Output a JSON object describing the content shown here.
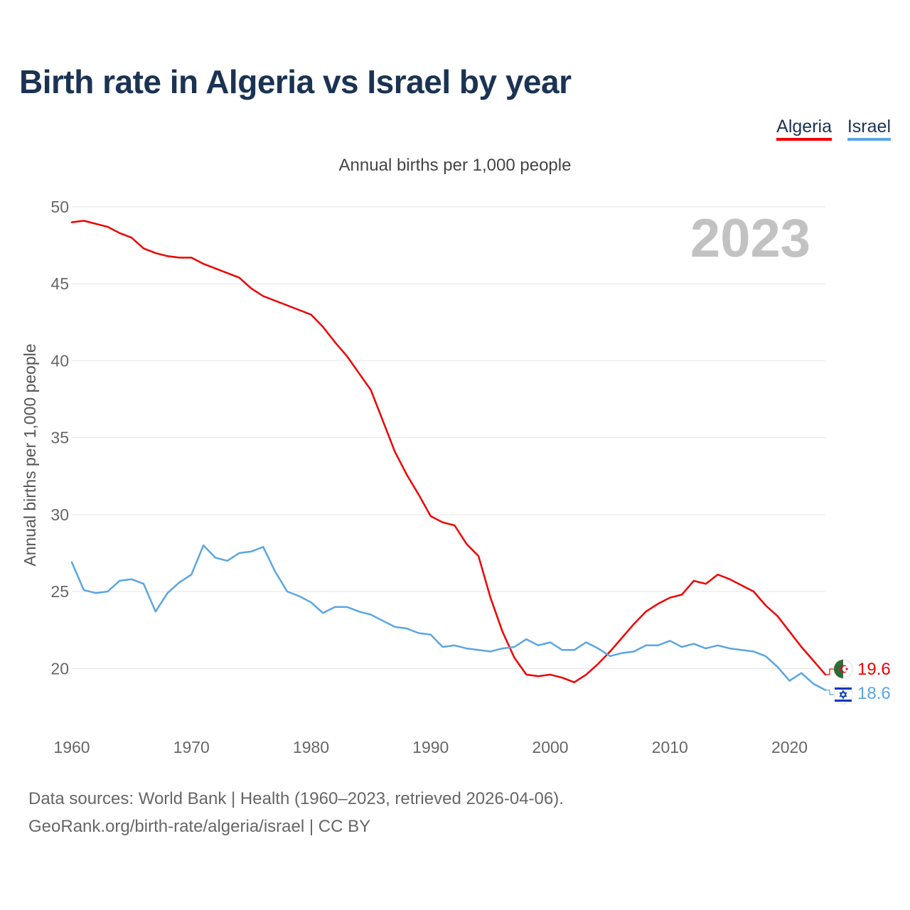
{
  "title": "Birth rate in Algeria vs Israel by year",
  "legend": [
    {
      "label": "Algeria",
      "color": "#ee0000"
    },
    {
      "label": "Israel",
      "color": "#5aa6e2"
    }
  ],
  "year_badge": "2023",
  "footer": {
    "line1": "Data sources: World Bank | Health (1960–2023, retrieved 2026-04-06).",
    "line2": "GeoRank.org/birth-rate/algeria/israel | CC BY"
  },
  "chart_data": {
    "type": "line",
    "title": "Birth rate in Algeria vs Israel by year",
    "subtitle": "Annual births per 1,000 people",
    "ylabel": "Annual births per 1,000 people",
    "xlabel": "",
    "xlim": [
      1960,
      2023
    ],
    "ylim": [
      16.5,
      50
    ],
    "yticks": [
      20,
      25,
      30,
      35,
      40,
      45,
      50
    ],
    "xticks": [
      1960,
      1970,
      1980,
      1990,
      2000,
      2010,
      2020
    ],
    "grid": true,
    "legend_position": "top-right",
    "x": [
      1960,
      1961,
      1962,
      1963,
      1964,
      1965,
      1966,
      1967,
      1968,
      1969,
      1970,
      1971,
      1972,
      1973,
      1974,
      1975,
      1976,
      1977,
      1978,
      1979,
      1980,
      1981,
      1982,
      1983,
      1984,
      1985,
      1986,
      1987,
      1988,
      1989,
      1990,
      1991,
      1992,
      1993,
      1994,
      1995,
      1996,
      1997,
      1998,
      1999,
      2000,
      2001,
      2002,
      2003,
      2004,
      2005,
      2006,
      2007,
      2008,
      2009,
      2010,
      2011,
      2012,
      2013,
      2014,
      2015,
      2016,
      2017,
      2018,
      2019,
      2020,
      2021,
      2022,
      2023
    ],
    "series": [
      {
        "name": "Algeria",
        "color": "#ee0000",
        "end_label": "19.6",
        "values": [
          49.0,
          49.1,
          48.9,
          48.7,
          48.3,
          48.0,
          47.3,
          47.0,
          46.8,
          46.7,
          46.7,
          46.3,
          46.0,
          45.7,
          45.4,
          44.7,
          44.2,
          43.9,
          43.6,
          43.3,
          43.0,
          42.2,
          41.2,
          40.3,
          39.2,
          38.1,
          36.1,
          34.1,
          32.6,
          31.3,
          29.9,
          29.5,
          29.3,
          28.1,
          27.3,
          24.6,
          22.4,
          20.7,
          19.6,
          19.5,
          19.6,
          19.4,
          19.1,
          19.6,
          20.3,
          21.1,
          22.0,
          22.9,
          23.7,
          24.2,
          24.6,
          24.8,
          25.7,
          25.5,
          26.1,
          25.8,
          25.4,
          25.0,
          24.1,
          23.4,
          22.4,
          21.4,
          20.5,
          19.6
        ]
      },
      {
        "name": "Israel",
        "color": "#5aa6e2",
        "end_label": "18.6",
        "values": [
          26.9,
          25.1,
          24.9,
          25.0,
          25.7,
          25.8,
          25.5,
          23.7,
          24.9,
          25.6,
          26.1,
          28.0,
          27.2,
          27.0,
          27.5,
          27.6,
          27.9,
          26.3,
          25.0,
          24.7,
          24.3,
          23.6,
          24.0,
          24.0,
          23.7,
          23.5,
          23.1,
          22.7,
          22.6,
          22.3,
          22.2,
          21.4,
          21.5,
          21.3,
          21.2,
          21.1,
          21.3,
          21.4,
          21.9,
          21.5,
          21.7,
          21.2,
          21.2,
          21.7,
          21.3,
          20.8,
          21.0,
          21.1,
          21.5,
          21.5,
          21.8,
          21.4,
          21.6,
          21.3,
          21.5,
          21.3,
          21.2,
          21.1,
          20.8,
          20.1,
          19.2,
          19.7,
          19.0,
          18.6
        ]
      }
    ]
  }
}
